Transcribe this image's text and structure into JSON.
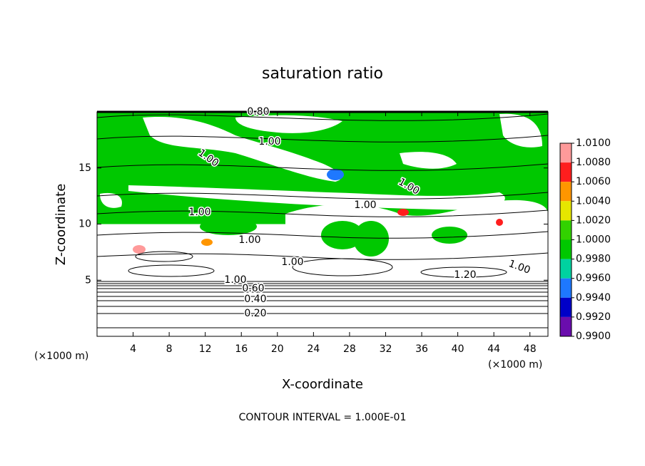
{
  "chart_data": {
    "type": "contour",
    "title": "saturation ratio",
    "x_label": "X-coordinate",
    "y_label": "Z-coordinate",
    "x_unit": "(×1000 m)",
    "y_unit": "(×1000 m)",
    "footer": "CONTOUR INTERVAL = 1.000E-01",
    "xlim": [
      0,
      50
    ],
    "xticks": [
      4,
      8,
      12,
      16,
      20,
      24,
      28,
      32,
      36,
      40,
      44,
      48
    ],
    "ylim": [
      0,
      20
    ],
    "yticks": [
      5,
      10,
      15
    ],
    "colorbar": {
      "lim": [
        0.99,
        1.01
      ],
      "ticks": [
        {
          "value": 1.01,
          "label": "1.0100"
        },
        {
          "value": 1.008,
          "label": "1.0080"
        },
        {
          "value": 1.006,
          "label": "1.0060"
        },
        {
          "value": 1.004,
          "label": "1.0040"
        },
        {
          "value": 1.002,
          "label": "1.0020"
        },
        {
          "value": 1.0,
          "label": "1.0000"
        },
        {
          "value": 0.998,
          "label": "0.9980"
        },
        {
          "value": 0.996,
          "label": "0.9960"
        },
        {
          "value": 0.994,
          "label": "0.9940"
        },
        {
          "value": 0.992,
          "label": "0.9920"
        },
        {
          "value": 0.99,
          "label": "0.9900"
        }
      ],
      "colors": [
        "#ff9a9a",
        "#ff1e1e",
        "#ff9600",
        "#e6e600",
        "#32d200",
        "#00c800",
        "#00d2a0",
        "#1e78ff",
        "#0000c8",
        "#6a0dad"
      ]
    },
    "contour_labels": [
      "0.80",
      "1.00",
      "1.00",
      "1.00",
      "1.00",
      "1.00",
      "1.00",
      "1.00",
      "1.00",
      "0.60",
      "0.40",
      "0.20",
      "1.20",
      "1.00"
    ]
  }
}
